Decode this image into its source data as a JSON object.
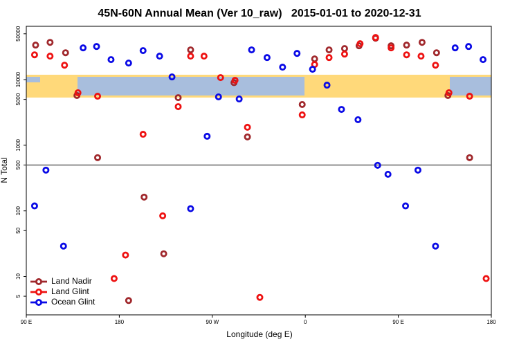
{
  "chart_data": {
    "type": "scatter",
    "title": "45N-60N Annual Mean (Ver 10_raw)   2015-01-01 to 2020-12-31",
    "x_label": "Longitude (deg E)",
    "y_label": "N Total",
    "xlim": [
      90,
      540
    ],
    "xticks": [
      {
        "value": 90,
        "label": "90 E"
      },
      {
        "value": 180,
        "label": "180"
      },
      {
        "value": 270,
        "label": "90 W"
      },
      {
        "value": 360,
        "label": "0"
      },
      {
        "value": 450,
        "label": "90 E"
      },
      {
        "value": 540,
        "label": "180"
      }
    ],
    "ylim": [
      2.6,
      65000
    ],
    "y_scale": "log",
    "yticks": [
      5,
      10,
      50,
      100,
      500,
      1000,
      5000,
      10000,
      50000
    ],
    "reference_line": 500,
    "legend": "lower left",
    "series": [
      {
        "name": "Land Nadir",
        "color": "#a0282c",
        "x": [
          99,
          113,
          128,
          139,
          159,
          189,
          204,
          223,
          237,
          249,
          291,
          304,
          357,
          369,
          383,
          398,
          412,
          428,
          443,
          458,
          473,
          487,
          498,
          519
        ],
        "values": [
          33600,
          37000,
          25700,
          5730,
          647,
          4.3,
          162,
          22.2,
          5320,
          28400,
          9000,
          1340,
          4180,
          20700,
          28400,
          29800,
          32800,
          42800,
          32800,
          33600,
          37000,
          25700,
          5730,
          647
        ]
      },
      {
        "name": "Land Glint",
        "color": "#ee1111",
        "x": [
          98,
          113,
          127,
          140,
          159,
          175,
          186,
          203,
          222,
          237,
          249,
          262,
          278,
          292,
          304,
          316,
          357,
          369,
          383,
          398,
          413,
          428,
          443,
          458,
          472,
          486,
          499,
          519,
          535
        ],
        "values": [
          23900,
          22800,
          16600,
          6310,
          5590,
          9.3,
          21.2,
          1470,
          84,
          3880,
          22800,
          22800,
          10750,
          9760,
          1880,
          4.8,
          2900,
          17000,
          21700,
          24500,
          35300,
          43900,
          30500,
          23900,
          22800,
          16600,
          6310,
          5590,
          9.3
        ]
      },
      {
        "name": "Ocean Glint",
        "color": "#0a0ae6",
        "x": [
          98,
          109,
          126,
          145,
          158,
          172,
          189,
          203,
          219,
          231,
          249,
          265,
          276,
          296,
          308,
          323,
          338,
          352,
          367,
          381,
          395,
          411,
          430,
          440,
          457,
          469,
          486,
          505,
          518,
          532
        ],
        "values": [
          119,
          418,
          29,
          30500,
          32000,
          20200,
          17900,
          27700,
          22800,
          11000,
          108,
          1370,
          5460,
          5070,
          28400,
          21700,
          15500,
          25100,
          14400,
          8240,
          3520,
          2450,
          495,
          361,
          119,
          418,
          29,
          30500,
          32000,
          20200
        ]
      }
    ]
  }
}
